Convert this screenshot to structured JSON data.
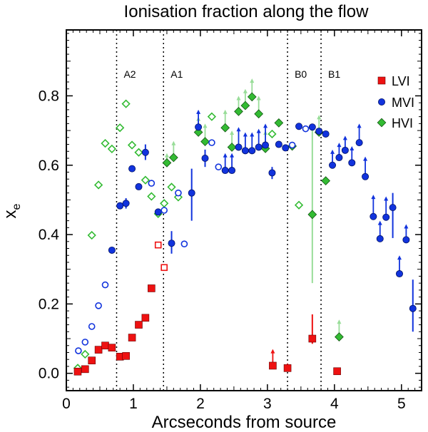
{
  "chart_data": {
    "type": "scatter",
    "title": "Ionisation fraction along the flow",
    "xlabel": "Arcseconds from source",
    "ylabel": "x",
    "ylabel_subscript": "e",
    "xlim": [
      0,
      5.3
    ],
    "ylim": [
      -0.05,
      0.99
    ],
    "xticks": [
      0,
      1,
      2,
      3,
      4,
      5
    ],
    "xtick_labels": [
      "0",
      "1",
      "2",
      "3",
      "4",
      "5"
    ],
    "yticks": [
      0.0,
      0.2,
      0.4,
      0.6,
      0.8
    ],
    "ytick_labels": [
      "0.0",
      "0.2",
      "0.4",
      "0.6",
      "0.8"
    ],
    "regions": [
      {
        "label": "A2",
        "x": 0.75
      },
      {
        "label": "A1",
        "x": 1.45
      },
      {
        "label": "B0",
        "x": 3.3
      },
      {
        "label": "B1",
        "x": 3.8
      }
    ],
    "legend_position": "top-right",
    "colors": {
      "LVI": "#ee1111",
      "MVI": "#1133dd",
      "HVI": "#33bb33",
      "HVI_errorbar": "#99dd99"
    },
    "series": [
      {
        "name": "LVI",
        "marker": "square",
        "points": [
          {
            "x": 0.17,
            "y": 0.005,
            "filled": true
          },
          {
            "x": 0.28,
            "y": 0.012,
            "filled": true
          },
          {
            "x": 0.38,
            "y": 0.037,
            "filled": true
          },
          {
            "x": 0.48,
            "y": 0.068,
            "filled": true
          },
          {
            "x": 0.58,
            "y": 0.08,
            "filled": true
          },
          {
            "x": 0.68,
            "y": 0.074,
            "filled": true
          },
          {
            "x": 0.8,
            "y": 0.048,
            "filled": true
          },
          {
            "x": 0.89,
            "y": 0.05,
            "filled": true
          },
          {
            "x": 0.98,
            "y": 0.103,
            "filled": true
          },
          {
            "x": 1.08,
            "y": 0.14,
            "filled": true
          },
          {
            "x": 1.18,
            "y": 0.16,
            "filled": true
          },
          {
            "x": 1.27,
            "y": 0.245,
            "filled": true
          },
          {
            "x": 1.37,
            "y": 0.37,
            "filled": false
          },
          {
            "x": 1.46,
            "y": 0.305,
            "filled": false
          },
          {
            "x": 3.08,
            "y": 0.022,
            "filled": true,
            "limit": "lower",
            "limit_to": 0.07
          },
          {
            "x": 3.3,
            "y": 0.015,
            "filled": true,
            "limit": "lower",
            "limit_to": 0.03
          },
          {
            "x": 3.67,
            "y": 0.1,
            "filled": true,
            "err_low": 0.085,
            "err_high": 0.17
          },
          {
            "x": 4.04,
            "y": 0.006,
            "filled": true
          }
        ]
      },
      {
        "name": "MVI",
        "marker": "circle",
        "points": [
          {
            "x": 0.18,
            "y": 0.065,
            "filled": false
          },
          {
            "x": 0.28,
            "y": 0.09,
            "filled": false
          },
          {
            "x": 0.38,
            "y": 0.135,
            "filled": false
          },
          {
            "x": 0.48,
            "y": 0.195,
            "filled": false
          },
          {
            "x": 0.58,
            "y": 0.255,
            "filled": false
          },
          {
            "x": 0.68,
            "y": 0.355,
            "filled": true
          },
          {
            "x": 0.8,
            "y": 0.483,
            "filled": true
          },
          {
            "x": 0.89,
            "y": 0.49,
            "filled": true,
            "err_low": 0.475,
            "err_high": 0.505
          },
          {
            "x": 0.98,
            "y": 0.59,
            "filled": true
          },
          {
            "x": 1.08,
            "y": 0.538,
            "filled": true
          },
          {
            "x": 1.18,
            "y": 0.637,
            "filled": true,
            "err_low": 0.615,
            "err_high": 0.66
          },
          {
            "x": 1.27,
            "y": 0.548,
            "filled": false
          },
          {
            "x": 1.37,
            "y": 0.465,
            "filled": true,
            "err_low": 0.455,
            "err_high": 0.475
          },
          {
            "x": 1.46,
            "y": 0.47,
            "filled": false
          },
          {
            "x": 1.57,
            "y": 0.375,
            "filled": true,
            "err_low": 0.345,
            "err_high": 0.41
          },
          {
            "x": 1.67,
            "y": 0.52,
            "filled": false
          },
          {
            "x": 1.76,
            "y": 0.373,
            "filled": false
          },
          {
            "x": 1.87,
            "y": 0.52,
            "filled": true,
            "err_low": 0.44,
            "err_high": 0.59
          },
          {
            "x": 1.97,
            "y": 0.71,
            "filled": true,
            "limit": "lower",
            "limit_to": 0.76
          },
          {
            "x": 2.07,
            "y": 0.62,
            "filled": true,
            "err_low": 0.595,
            "err_high": 0.645
          },
          {
            "x": 2.17,
            "y": 0.665,
            "filled": false
          },
          {
            "x": 2.27,
            "y": 0.595,
            "filled": false
          },
          {
            "x": 2.37,
            "y": 0.585,
            "filled": true,
            "limit": "lower",
            "limit_to": 0.635
          },
          {
            "x": 2.47,
            "y": 0.585,
            "filled": true,
            "limit": "lower",
            "limit_to": 0.635
          },
          {
            "x": 2.57,
            "y": 0.652,
            "filled": true,
            "limit": "lower",
            "limit_to": 0.71
          },
          {
            "x": 2.67,
            "y": 0.642,
            "filled": true,
            "limit": "lower",
            "limit_to": 0.695
          },
          {
            "x": 2.77,
            "y": 0.642,
            "filled": true,
            "limit": "lower",
            "limit_to": 0.695
          },
          {
            "x": 2.87,
            "y": 0.652,
            "filled": true,
            "limit": "lower",
            "limit_to": 0.705
          },
          {
            "x": 2.97,
            "y": 0.658,
            "filled": true,
            "limit": "lower",
            "limit_to": 0.72
          },
          {
            "x": 3.07,
            "y": 0.578,
            "filled": true,
            "err_low": 0.56,
            "err_high": 0.595
          },
          {
            "x": 3.17,
            "y": 0.66,
            "filled": true
          },
          {
            "x": 3.27,
            "y": 0.65,
            "filled": true
          },
          {
            "x": 3.37,
            "y": 0.658,
            "filled": false
          },
          {
            "x": 3.47,
            "y": 0.712,
            "filled": true
          },
          {
            "x": 3.57,
            "y": 0.705,
            "filled": false
          },
          {
            "x": 3.67,
            "y": 0.71,
            "filled": true
          },
          {
            "x": 3.77,
            "y": 0.698,
            "filled": true
          },
          {
            "x": 3.87,
            "y": 0.69,
            "filled": true
          },
          {
            "x": 3.97,
            "y": 0.6,
            "filled": true,
            "limit": "lower",
            "limit_to": 0.645
          },
          {
            "x": 4.07,
            "y": 0.622,
            "filled": true,
            "limit": "lower",
            "limit_to": 0.665
          },
          {
            "x": 4.16,
            "y": 0.643,
            "filled": true,
            "limit": "lower",
            "limit_to": 0.685
          },
          {
            "x": 4.26,
            "y": 0.607,
            "filled": true,
            "limit": "lower",
            "limit_to": 0.655
          },
          {
            "x": 4.37,
            "y": 0.665,
            "filled": true,
            "limit": "lower",
            "limit_to": 0.72
          },
          {
            "x": 4.46,
            "y": 0.567,
            "filled": true,
            "limit": "lower",
            "limit_to": 0.625
          },
          {
            "x": 4.58,
            "y": 0.452,
            "filled": true,
            "limit": "lower",
            "limit_to": 0.515
          },
          {
            "x": 4.68,
            "y": 0.388,
            "filled": true,
            "limit": "lower",
            "limit_to": 0.44
          },
          {
            "x": 4.77,
            "y": 0.45,
            "filled": true,
            "limit": "lower",
            "limit_to": 0.51
          },
          {
            "x": 4.87,
            "y": 0.478,
            "filled": true,
            "err_low": 0.39,
            "err_high": 0.52
          },
          {
            "x": 4.97,
            "y": 0.287,
            "filled": true,
            "limit": "lower",
            "limit_to": 0.34
          },
          {
            "x": 5.07,
            "y": 0.385,
            "filled": true,
            "limit": "lower",
            "limit_to": 0.43
          },
          {
            "x": 5.17,
            "y": 0.187,
            "filled": true,
            "err_low": 0.12,
            "err_high": 0.27
          }
        ]
      },
      {
        "name": "HVI",
        "marker": "diamond",
        "points": [
          {
            "x": 0.17,
            "y": 0.015,
            "filled": false
          },
          {
            "x": 0.28,
            "y": 0.055,
            "filled": false
          },
          {
            "x": 0.38,
            "y": 0.398,
            "filled": false
          },
          {
            "x": 0.48,
            "y": 0.543,
            "filled": false
          },
          {
            "x": 0.58,
            "y": 0.663,
            "filled": false
          },
          {
            "x": 0.68,
            "y": 0.647,
            "filled": false
          },
          {
            "x": 0.8,
            "y": 0.708,
            "filled": false
          },
          {
            "x": 0.89,
            "y": 0.777,
            "filled": false
          },
          {
            "x": 0.98,
            "y": 0.658,
            "filled": false
          },
          {
            "x": 1.08,
            "y": 0.637,
            "filled": false
          },
          {
            "x": 1.18,
            "y": 0.557,
            "filled": false
          },
          {
            "x": 1.27,
            "y": 0.51,
            "filled": false
          },
          {
            "x": 1.37,
            "y": 0.46,
            "filled": false
          },
          {
            "x": 1.46,
            "y": 0.49,
            "filled": false
          },
          {
            "x": 1.57,
            "y": 0.537,
            "filled": false
          },
          {
            "x": 1.67,
            "y": 0.508,
            "filled": false
          },
          {
            "x": 1.5,
            "y": 0.607,
            "filled": true,
            "limit": "lower",
            "limit_to": 0.635
          },
          {
            "x": 1.6,
            "y": 0.622,
            "filled": true,
            "limit": "lower",
            "limit_to": 0.67
          },
          {
            "x": 1.97,
            "y": 0.695,
            "filled": true,
            "limit": "lower",
            "limit_to": 0.74
          },
          {
            "x": 2.07,
            "y": 0.668,
            "filled": true,
            "limit": "lower",
            "limit_to": 0.72
          },
          {
            "x": 2.17,
            "y": 0.74,
            "filled": false
          },
          {
            "x": 2.37,
            "y": 0.708,
            "filled": true,
            "limit": "lower",
            "limit_to": 0.76
          },
          {
            "x": 2.47,
            "y": 0.652,
            "filled": true,
            "limit": "lower",
            "limit_to": 0.7
          },
          {
            "x": 2.57,
            "y": 0.755,
            "filled": true,
            "limit": "lower",
            "limit_to": 0.8
          },
          {
            "x": 2.67,
            "y": 0.772,
            "filled": true,
            "limit": "lower",
            "limit_to": 0.82
          },
          {
            "x": 2.77,
            "y": 0.797,
            "filled": true,
            "limit": "lower",
            "limit_to": 0.85
          },
          {
            "x": 2.87,
            "y": 0.748,
            "filled": true,
            "limit": "lower",
            "limit_to": 0.8
          },
          {
            "x": 2.97,
            "y": 0.648,
            "filled": true,
            "limit": "lower",
            "limit_to": 0.7
          },
          {
            "x": 3.07,
            "y": 0.69,
            "filled": false
          },
          {
            "x": 3.17,
            "y": 0.722,
            "filled": true
          },
          {
            "x": 3.37,
            "y": 0.655,
            "filled": true
          },
          {
            "x": 3.47,
            "y": 0.485,
            "filled": false
          },
          {
            "x": 3.67,
            "y": 0.458,
            "filled": true,
            "err_low": 0.26,
            "err_high": 0.7
          },
          {
            "x": 3.77,
            "y": 0.695,
            "filled": true,
            "limit": "lower",
            "limit_to": 0.745
          },
          {
            "x": 3.87,
            "y": 0.555,
            "filled": true
          },
          {
            "x": 4.07,
            "y": 0.105,
            "filled": true,
            "limit": "lower",
            "limit_to": 0.155
          }
        ]
      }
    ]
  }
}
